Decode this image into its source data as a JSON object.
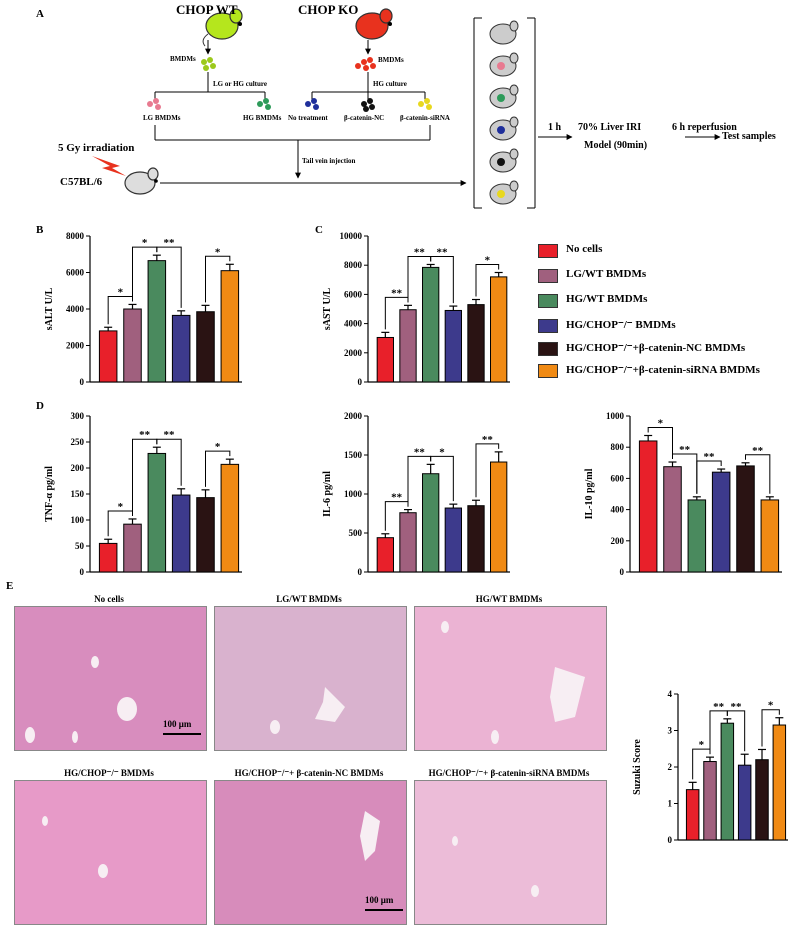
{
  "panel_labels": {
    "a": "A",
    "b": "B",
    "c": "C",
    "d": "D",
    "e": "E"
  },
  "schematic": {
    "chop_wt": "CHOP WT",
    "chop_ko": "CHOP KO",
    "bmdms_left": "BMDMs",
    "bmdms_right": "BMDMs",
    "culture_left": "LG or HG culture",
    "culture_right": "HG culture",
    "groups": [
      "LG BMDMs",
      "HG BMDMs",
      "No treatment",
      "β-catenin-NC",
      "β-catenin-siRNA"
    ],
    "irradiation": "5 Gy irradiation",
    "mouse_strain": "C57BL/6",
    "injection": "Tail vein injection",
    "time_1h": "1 h",
    "iri_line1": "70% Liver IRI",
    "iri_line2": "Model (90min)",
    "reperfusion": "6 h reperfusion",
    "test": "Test samples",
    "colors": {
      "wt_mouse": "#b5e61d",
      "ko_mouse": "#e8321e",
      "lg": "#e87a90",
      "hg": "#2e9b5a",
      "nt": "#1f2f9b",
      "nc": "#111111",
      "si": "#e8d81e"
    }
  },
  "legend": [
    {
      "label": "No cells",
      "color": "#e8202a"
    },
    {
      "label": "LG/WT BMDMs",
      "color": "#a0607e"
    },
    {
      "label": "HG/WT BMDMs",
      "color": "#4a8a5e"
    },
    {
      "label": "HG/CHOP⁻/⁻ BMDMs",
      "color": "#3d3a8c"
    },
    {
      "label": "HG/CHOP⁻/⁻+β-catenin-NC BMDMs",
      "color": "#2a1313"
    },
    {
      "label": "HG/CHOP⁻/⁻+β-catenin-siRNA BMDMs",
      "color": "#f08a14"
    }
  ],
  "histology": {
    "titles": [
      "No cells",
      "LG/WT BMDMs",
      "HG/WT BMDMs",
      "HG/CHOP⁻/⁻ BMDMs",
      "HG/CHOP⁻/⁻+ β-catenin-NC BMDMs",
      "HG/CHOP⁻/⁻+ β-catenin-siRNA BMDMs"
    ],
    "scale_bar": "100 μm"
  },
  "chart_data": [
    {
      "id": "alt",
      "type": "bar",
      "title": "",
      "xlabel": "",
      "ylabel": "sALT U/L",
      "ylim": [
        0,
        8000
      ],
      "ticks": [
        0,
        2000,
        4000,
        6000,
        8000
      ],
      "values": [
        2800,
        4000,
        6650,
        3650,
        3850,
        6100
      ],
      "errors": [
        200,
        250,
        300,
        250,
        350,
        350
      ],
      "sig": [
        {
          "from": 0,
          "to": 1,
          "label": "*"
        },
        {
          "from": 1,
          "to": 2,
          "label": "*"
        },
        {
          "from": 2,
          "to": 3,
          "label": "**"
        },
        {
          "from": 4,
          "to": 5,
          "label": "*"
        }
      ]
    },
    {
      "id": "ast",
      "type": "bar",
      "title": "",
      "xlabel": "",
      "ylabel": "sAST U/L",
      "ylim": [
        0,
        10000
      ],
      "ticks": [
        0,
        2000,
        4000,
        6000,
        8000,
        10000
      ],
      "values": [
        3050,
        4950,
        7850,
        4900,
        5300,
        7200
      ],
      "errors": [
        350,
        300,
        200,
        300,
        350,
        300
      ],
      "sig": [
        {
          "from": 0,
          "to": 1,
          "label": "**"
        },
        {
          "from": 1,
          "to": 2,
          "label": "**"
        },
        {
          "from": 2,
          "to": 3,
          "label": "**"
        },
        {
          "from": 4,
          "to": 5,
          "label": "*"
        }
      ]
    },
    {
      "id": "tnf",
      "type": "bar",
      "title": "",
      "xlabel": "",
      "ylabel": "TNF-α pg/ml",
      "ylim": [
        0,
        300
      ],
      "ticks": [
        0,
        50,
        100,
        150,
        200,
        250,
        300
      ],
      "values": [
        55,
        92,
        228,
        148,
        143,
        207
      ],
      "errors": [
        8,
        10,
        12,
        12,
        15,
        10
      ],
      "sig": [
        {
          "from": 0,
          "to": 1,
          "label": "*"
        },
        {
          "from": 1,
          "to": 2,
          "label": "**"
        },
        {
          "from": 2,
          "to": 3,
          "label": "**"
        },
        {
          "from": 4,
          "to": 5,
          "label": "*"
        }
      ]
    },
    {
      "id": "il6",
      "type": "bar",
      "title": "",
      "xlabel": "",
      "ylabel": "IL-6 pg/ml",
      "ylim": [
        0,
        2000
      ],
      "ticks": [
        0,
        500,
        1000,
        1500,
        2000
      ],
      "values": [
        440,
        760,
        1260,
        820,
        850,
        1410
      ],
      "errors": [
        50,
        40,
        120,
        50,
        70,
        130
      ],
      "sig": [
        {
          "from": 0,
          "to": 1,
          "label": "**"
        },
        {
          "from": 1,
          "to": 2,
          "label": "**"
        },
        {
          "from": 2,
          "to": 3,
          "label": "*"
        },
        {
          "from": 4,
          "to": 5,
          "label": "**"
        }
      ]
    },
    {
      "id": "il10",
      "type": "bar",
      "title": "",
      "xlabel": "",
      "ylabel": "IL-10 pg/ml",
      "ylim": [
        0,
        1000
      ],
      "ticks": [
        0,
        200,
        400,
        600,
        800,
        1000
      ],
      "values": [
        840,
        675,
        462,
        640,
        680,
        462
      ],
      "errors": [
        35,
        30,
        20,
        20,
        20,
        20
      ],
      "sig": [
        {
          "from": 0,
          "to": 1,
          "label": "*"
        },
        {
          "from": 1,
          "to": 2,
          "label": "**"
        },
        {
          "from": 2,
          "to": 3,
          "label": "**"
        },
        {
          "from": 4,
          "to": 5,
          "label": "**"
        }
      ]
    },
    {
      "id": "suzuki",
      "type": "bar",
      "title": "",
      "xlabel": "",
      "ylabel": "Suzuki Score",
      "ylim": [
        0,
        4
      ],
      "ticks": [
        0,
        1,
        2,
        3,
        4
      ],
      "values": [
        1.38,
        2.15,
        3.2,
        2.05,
        2.2,
        3.15
      ],
      "errors": [
        0.2,
        0.12,
        0.12,
        0.3,
        0.28,
        0.2
      ],
      "sig": [
        {
          "from": 0,
          "to": 1,
          "label": "*"
        },
        {
          "from": 1,
          "to": 2,
          "label": "**"
        },
        {
          "from": 2,
          "to": 3,
          "label": "**"
        },
        {
          "from": 4,
          "to": 5,
          "label": "*"
        }
      ]
    }
  ]
}
